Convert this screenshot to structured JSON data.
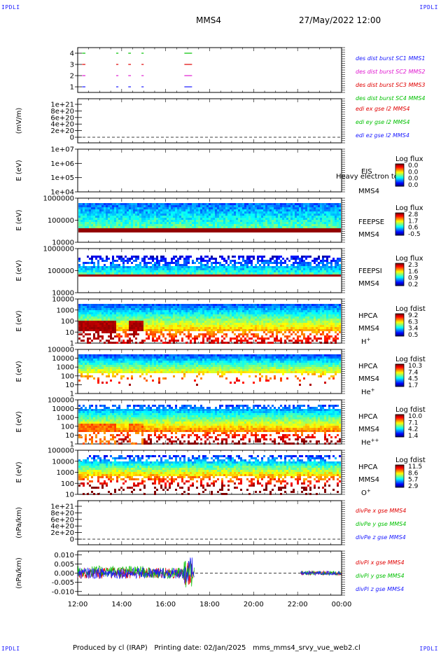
{
  "page": {
    "corner_label": "IPDLI",
    "spacecraft_title": "MMS4",
    "datetime_title": "27/May/2022 12:00",
    "footer_producer": "Produced by cl (IRAP)",
    "footer_date": "Printing date: 02/Jan/2025",
    "footer_file": "mms_mms4_srvy_vue_web2.cl"
  },
  "chart_data": [
    {
      "id": "burst",
      "type": "scatter",
      "yticks": [
        "1",
        "2",
        "3",
        "4"
      ],
      "legend": [
        {
          "label": "des dist burst SC1 MMS1",
          "color": "#1a1aff"
        },
        {
          "label": "des dist burst SC2 MMS2",
          "color": "#e01ad0"
        },
        {
          "label": "des dist burst SC3 MMS3",
          "color": "#e00000"
        },
        {
          "label": "des dist burst SC4 MMS4",
          "color": "#00c000"
        }
      ],
      "bursts_hours": [
        [
          12.2,
          12.35
        ],
        [
          13.75,
          13.85
        ],
        [
          14.3,
          14.42
        ],
        [
          14.9,
          15.0
        ],
        [
          16.85,
          17.2
        ]
      ]
    },
    {
      "id": "edi",
      "type": "line",
      "ylabel": "(mV/m)",
      "yticks": [
        "1e+21",
        "8e+20",
        "6e+20",
        "4e+20",
        "2e+20",
        "0"
      ],
      "legend": [
        {
          "label": "edi ex gse l2 MMS4",
          "color": "#e00000"
        },
        {
          "label": "edi ey gse l2 MMS4",
          "color": "#00c000"
        },
        {
          "label": "edi ez gse l2 MMS4",
          "color": "#1a1aff"
        }
      ]
    },
    {
      "id": "eis",
      "type": "heatmap",
      "ylabel": "E (eV)",
      "yticks": [
        "1e+07",
        "1e+06",
        "1e+05",
        "1e+04"
      ],
      "instrument": "EIS",
      "spacecraft": "MMS4",
      "overlap_text": "Heavy electron to",
      "colorbar_title": "Log flux",
      "colorbar_ticks": [
        "0.0",
        "0.0",
        "0.0",
        "0.0"
      ]
    },
    {
      "id": "feepse",
      "type": "heatmap",
      "ylabel": "E (eV)",
      "yticks": [
        "1000000",
        "100000",
        "10000"
      ],
      "instrument": "FEEPSE",
      "spacecraft": "MMS4",
      "colorbar_title": "Log flux",
      "colorbar_ticks": [
        "2.8",
        "1.7",
        "0.6",
        "-0.5"
      ]
    },
    {
      "id": "feepsi",
      "type": "heatmap",
      "ylabel": "E (eV)",
      "yticks": [
        "1000000",
        "100000",
        "10000"
      ],
      "instrument": "FEEPSI",
      "spacecraft": "MMS4",
      "colorbar_title": "Log flux",
      "colorbar_ticks": [
        "2.3",
        "1.6",
        "0.9",
        "0.2"
      ]
    },
    {
      "id": "hpca_h",
      "type": "heatmap",
      "ylabel": "E (eV)",
      "yticks": [
        "10000",
        "1000",
        "100",
        "10",
        "1"
      ],
      "instrument": "HPCA",
      "spacecraft": "MMS4",
      "species": "H",
      "charge": "+",
      "colorbar_title": "Log fdist",
      "colorbar_ticks": [
        "9.2",
        "6.3",
        "3.4",
        "0.5"
      ]
    },
    {
      "id": "hpca_he",
      "type": "heatmap",
      "ylabel": "E (eV)",
      "yticks": [
        "100000",
        "10000",
        "1000",
        "100",
        "10",
        "1"
      ],
      "instrument": "HPCA",
      "spacecraft": "MMS4",
      "species": "He",
      "charge": "+",
      "colorbar_title": "Log fdist",
      "colorbar_ticks": [
        "10.3",
        "7.4",
        "4.5",
        "1.7"
      ]
    },
    {
      "id": "hpca_hepp",
      "type": "heatmap",
      "ylabel": "E (eV)",
      "yticks": [
        "100000",
        "10000",
        "1000",
        "100",
        "10",
        "1"
      ],
      "instrument": "HPCA",
      "spacecraft": "MMS4",
      "species": "He",
      "charge": "++",
      "colorbar_title": "Log fdist",
      "colorbar_ticks": [
        "10.0",
        "7.1",
        "4.2",
        "1.4"
      ]
    },
    {
      "id": "hpca_o",
      "type": "heatmap",
      "ylabel": "E (eV)",
      "yticks": [
        "100000",
        "10000",
        "1000",
        "100",
        "10"
      ],
      "instrument": "HPCA",
      "spacecraft": "MMS4",
      "species": "O",
      "charge": "+",
      "colorbar_title": "Log fdist",
      "colorbar_ticks": [
        "11.5",
        "8.6",
        "5.7",
        "2.9"
      ]
    },
    {
      "id": "divpe",
      "type": "line",
      "ylabel": "(nPa/km)",
      "yticks": [
        "1e+21",
        "8e+20",
        "6e+20",
        "4e+20",
        "2e+20",
        "0"
      ],
      "legend": [
        {
          "label": "divPe x gse MMS4",
          "color": "#e00000"
        },
        {
          "label": "divPe y gse MMS4",
          "color": "#00c000"
        },
        {
          "label": "divPe z gse MMS4",
          "color": "#1a1aff"
        }
      ]
    },
    {
      "id": "divpi",
      "type": "line",
      "ylabel": "(nPa/km)",
      "yticks": [
        "0.010",
        "0.005",
        "0.000",
        "-0.005",
        "-0.010"
      ],
      "ylim": [
        -0.012,
        0.012
      ],
      "legend": [
        {
          "label": "divPi x gse MMS4",
          "color": "#e00000"
        },
        {
          "label": "divPi y gse MMS4",
          "color": "#00c000"
        },
        {
          "label": "divPi z gse MMS4",
          "color": "#1a1aff"
        }
      ]
    }
  ],
  "xaxis": {
    "ticks": [
      "12:00",
      "14:00",
      "16:00",
      "18:00",
      "20:00",
      "22:00",
      "00:00"
    ],
    "range_hours": [
      12,
      24
    ]
  }
}
